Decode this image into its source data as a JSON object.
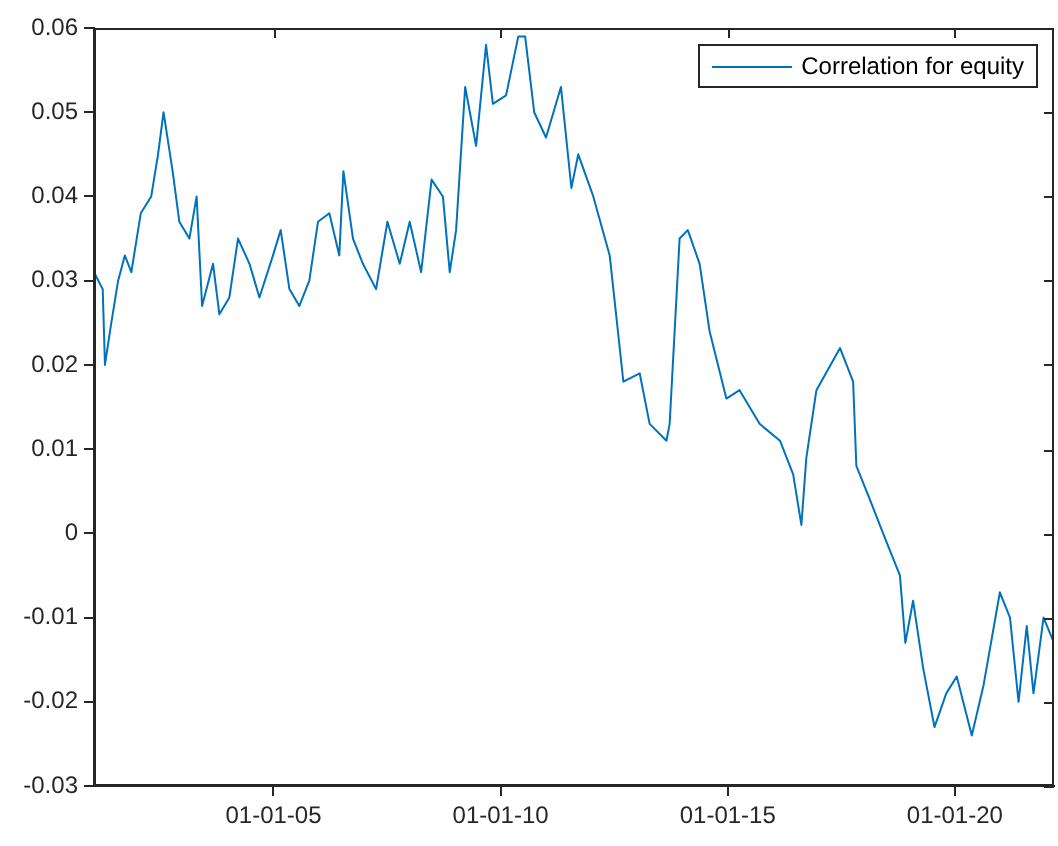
{
  "chart_data": {
    "type": "line",
    "x": [
      "2001-01-19",
      "2001-03-30",
      "2001-04-17",
      "2001-06-07",
      "2001-08-01",
      "2001-09-24",
      "2001-11-15",
      "2002-01-30",
      "2002-04-24",
      "2002-06-18",
      "2002-08-01",
      "2002-10-13",
      "2002-12-06",
      "2003-02-25",
      "2003-04-24",
      "2003-06-07",
      "2003-09-03",
      "2003-10-24",
      "2004-01-12",
      "2004-03-22",
      "2004-06-22",
      "2004-09-10",
      "2004-12-28",
      "2005-02-28",
      "2005-05-09",
      "2005-07-28",
      "2005-10-16",
      "2005-12-25",
      "2006-03-26",
      "2006-06-14",
      "2006-07-17",
      "2006-10-02",
      "2006-12-21",
      "2007-04-06",
      "2007-07-06",
      "2007-10-13",
      "2008-01-01",
      "2008-04-02",
      "2008-06-25",
      "2008-09-24",
      "2008-11-18",
      "2009-01-08",
      "2009-03-22",
      "2009-06-18",
      "2009-09-06",
      "2009-10-31",
      "2010-02-14",
      "2010-05-23",
      "2010-07-17",
      "2010-09-28",
      "2011-01-01",
      "2011-05-01",
      "2011-07-24",
      "2011-09-17",
      "2012-01-16",
      "2012-05-27",
      "2012-09-14",
      "2013-01-23",
      "2013-04-13",
      "2013-08-26",
      "2013-09-21",
      "2013-12-10",
      "2014-02-14",
      "2014-05-20",
      "2014-08-08",
      "2014-12-21",
      "2015-04-06",
      "2015-09-14",
      "2016-02-25",
      "2016-06-10",
      "2016-08-15",
      "2016-09-24",
      "2016-12-14",
      "2017-06-22",
      "2017-10-05",
      "2017-10-31",
      "2018-02-17",
      "2018-06-03",
      "2018-10-16",
      "2018-11-29",
      "2019-01-30",
      "2019-04-21",
      "2019-07-21",
      "2019-10-24",
      "2020-01-16",
      "2020-05-16",
      "2020-08-19",
      "2020-12-28",
      "2021-03-19",
      "2021-05-27",
      "2021-08-01",
      "2021-09-24",
      "2021-12-14",
      "2022-03-08"
    ],
    "series": [
      {
        "name": "Correlation for equity",
        "color": "#0072bd",
        "values": [
          0.031,
          0.029,
          0.02,
          0.025,
          0.03,
          0.033,
          0.031,
          0.038,
          0.04,
          0.045,
          0.05,
          0.043,
          0.037,
          0.035,
          0.04,
          0.027,
          0.032,
          0.026,
          0.028,
          0.035,
          0.032,
          0.028,
          0.033,
          0.036,
          0.029,
          0.027,
          0.03,
          0.037,
          0.038,
          0.033,
          0.043,
          0.035,
          0.032,
          0.029,
          0.037,
          0.032,
          0.037,
          0.031,
          0.042,
          0.04,
          0.031,
          0.036,
          0.053,
          0.046,
          0.058,
          0.051,
          0.052,
          0.059,
          0.059,
          0.05,
          0.047,
          0.053,
          0.041,
          0.045,
          0.04,
          0.033,
          0.018,
          0.019,
          0.013,
          0.011,
          0.013,
          0.035,
          0.036,
          0.032,
          0.024,
          0.016,
          0.017,
          0.013,
          0.011,
          0.007,
          0.001,
          0.009,
          0.017,
          0.022,
          0.018,
          0.008,
          0.004,
          0.0,
          -0.005,
          -0.013,
          -0.008,
          -0.016,
          -0.023,
          -0.019,
          -0.017,
          -0.024,
          -0.018,
          -0.007,
          -0.01,
          -0.02,
          -0.011,
          -0.019,
          -0.01,
          -0.013
        ]
      }
    ],
    "xlim": [
      "2001-01-19",
      "2022-03-08"
    ],
    "xticks": [
      {
        "value": "2005-01-01",
        "label": "01-01-05"
      },
      {
        "value": "2010-01-01",
        "label": "01-01-10"
      },
      {
        "value": "2015-01-01",
        "label": "01-01-15"
      },
      {
        "value": "2020-01-01",
        "label": "01-01-20"
      }
    ],
    "ylim": [
      -0.03,
      0.06
    ],
    "yticks": [
      {
        "value": -0.03,
        "label": "-0.03"
      },
      {
        "value": -0.02,
        "label": "-0.02"
      },
      {
        "value": -0.01,
        "label": "-0.01"
      },
      {
        "value": 0,
        "label": "0"
      },
      {
        "value": 0.01,
        "label": "0.01"
      },
      {
        "value": 0.02,
        "label": "0.02"
      },
      {
        "value": 0.03,
        "label": "0.03"
      },
      {
        "value": 0.04,
        "label": "0.04"
      },
      {
        "value": 0.05,
        "label": "0.05"
      },
      {
        "value": 0.06,
        "label": "0.06"
      }
    ],
    "grid": false,
    "legend": "top right",
    "marker": "none",
    "line_style": "solid"
  }
}
